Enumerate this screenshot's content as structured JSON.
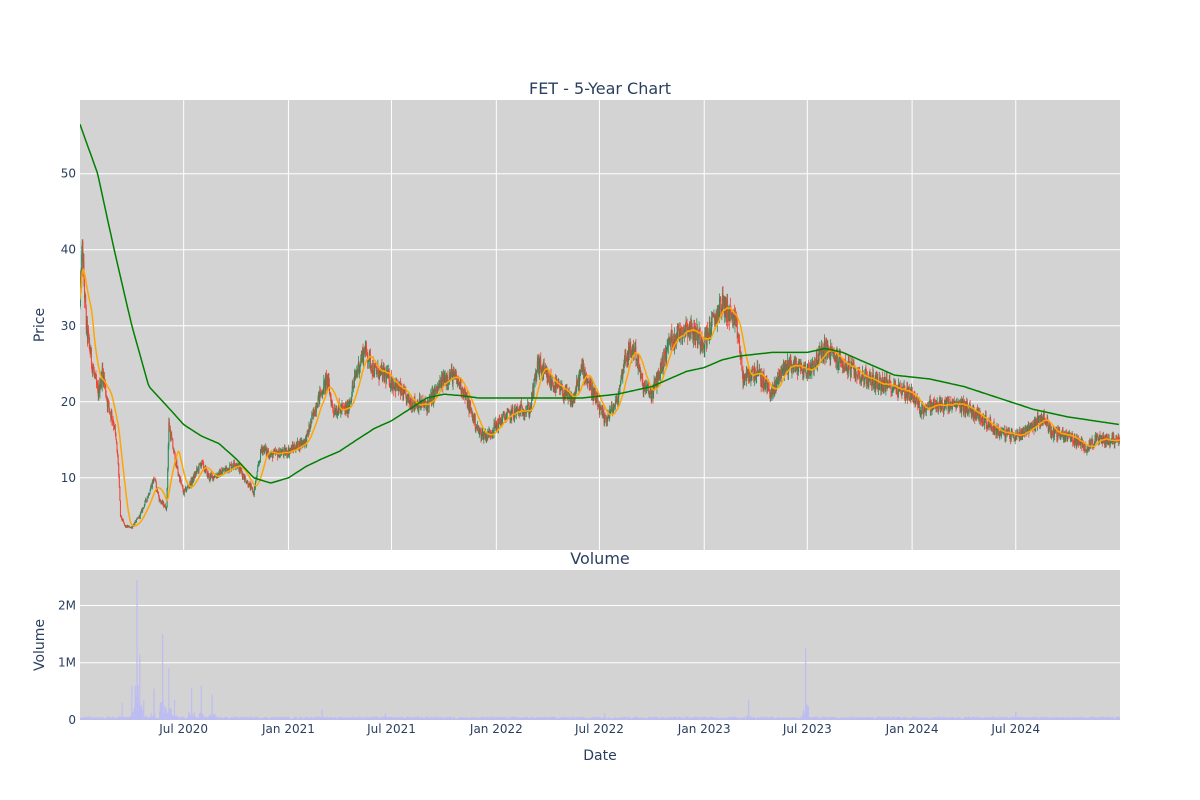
{
  "chart_data": [
    {
      "type": "candlestick",
      "title": "FET - 5-Year Chart",
      "ylabel": "Price",
      "ylim": [
        0.5,
        59.7
      ],
      "yticks": [
        "10",
        "20",
        "30",
        "40",
        "50"
      ],
      "ytick_values": [
        10,
        20,
        30,
        40,
        50
      ],
      "xlim": [
        "2020-01-01",
        "2024-12-31"
      ],
      "grid": true,
      "colors": {
        "background": "#d3d3d3",
        "grid": "#ffffff",
        "up": "#2e8b57",
        "down": "#ef4638",
        "ma_short": "#ffa500",
        "ma_long": "#008000"
      },
      "close_keypoints": [
        [
          "2020-01-01",
          33
        ],
        [
          "2020-01-05",
          40
        ],
        [
          "2020-01-12",
          30
        ],
        [
          "2020-01-20",
          26
        ],
        [
          "2020-02-01",
          21
        ],
        [
          "2020-02-10",
          24
        ],
        [
          "2020-02-18",
          20
        ],
        [
          "2020-03-01",
          17
        ],
        [
          "2020-03-08",
          12
        ],
        [
          "2020-03-12",
          5
        ],
        [
          "2020-03-20",
          3.6
        ],
        [
          "2020-04-01",
          3.5
        ],
        [
          "2020-04-15",
          5
        ],
        [
          "2020-05-01",
          8
        ],
        [
          "2020-05-10",
          10
        ],
        [
          "2020-05-20",
          7
        ],
        [
          "2020-06-01",
          6
        ],
        [
          "2020-06-05",
          17
        ],
        [
          "2020-06-12",
          14
        ],
        [
          "2020-06-20",
          11
        ],
        [
          "2020-07-01",
          8
        ],
        [
          "2020-07-15",
          9.5
        ],
        [
          "2020-08-01",
          12
        ],
        [
          "2020-08-15",
          10
        ],
        [
          "2020-09-01",
          10.5
        ],
        [
          "2020-10-01",
          12
        ],
        [
          "2020-10-20",
          9.5
        ],
        [
          "2020-11-01",
          8
        ],
        [
          "2020-11-15",
          14
        ],
        [
          "2020-12-01",
          13
        ],
        [
          "2021-01-01",
          13.5
        ],
        [
          "2021-02-01",
          15
        ],
        [
          "2021-02-20",
          20
        ],
        [
          "2021-03-10",
          23
        ],
        [
          "2021-03-20",
          19
        ],
        [
          "2021-04-15",
          19
        ],
        [
          "2021-05-01",
          24
        ],
        [
          "2021-05-15",
          27
        ],
        [
          "2021-06-01",
          24
        ],
        [
          "2021-06-20",
          23.5
        ],
        [
          "2021-07-10",
          22
        ],
        [
          "2021-08-01",
          20
        ],
        [
          "2021-09-01",
          19.5
        ],
        [
          "2021-10-01",
          23
        ],
        [
          "2021-10-15",
          23.5
        ],
        [
          "2021-11-01",
          22
        ],
        [
          "2021-12-01",
          16
        ],
        [
          "2021-12-15",
          15.5
        ],
        [
          "2022-01-15",
          18
        ],
        [
          "2022-02-15",
          19
        ],
        [
          "2022-03-01",
          19
        ],
        [
          "2022-03-15",
          25
        ],
        [
          "2022-04-01",
          23
        ],
        [
          "2022-05-01",
          21
        ],
        [
          "2022-05-15",
          20
        ],
        [
          "2022-06-01",
          24.5
        ],
        [
          "2022-06-15",
          22
        ],
        [
          "2022-07-01",
          19
        ],
        [
          "2022-07-10",
          17.5
        ],
        [
          "2022-08-01",
          20
        ],
        [
          "2022-08-15",
          26
        ],
        [
          "2022-09-01",
          27
        ],
        [
          "2022-09-15",
          22
        ],
        [
          "2022-10-01",
          21
        ],
        [
          "2022-10-15",
          24
        ],
        [
          "2022-11-01",
          28
        ],
        [
          "2022-12-01",
          30
        ],
        [
          "2023-01-01",
          28
        ],
        [
          "2023-01-20",
          31
        ],
        [
          "2023-02-01",
          33
        ],
        [
          "2023-02-20",
          31
        ],
        [
          "2023-03-01",
          29
        ],
        [
          "2023-03-10",
          23
        ],
        [
          "2023-04-01",
          24
        ],
        [
          "2023-05-01",
          21
        ],
        [
          "2023-05-15",
          24
        ],
        [
          "2023-06-01",
          25
        ],
        [
          "2023-07-01",
          24
        ],
        [
          "2023-08-01",
          27
        ],
        [
          "2023-09-01",
          25
        ],
        [
          "2023-10-01",
          23.5
        ],
        [
          "2023-11-01",
          22.5
        ],
        [
          "2023-12-01",
          22
        ],
        [
          "2024-01-01",
          21
        ],
        [
          "2024-01-15",
          19
        ],
        [
          "2024-02-01",
          19.5
        ],
        [
          "2024-03-01",
          19.5
        ],
        [
          "2024-04-01",
          19.5
        ],
        [
          "2024-05-01",
          18
        ],
        [
          "2024-06-01",
          16
        ],
        [
          "2024-07-01",
          15.5
        ],
        [
          "2024-08-01",
          17
        ],
        [
          "2024-08-20",
          18
        ],
        [
          "2024-09-01",
          16
        ],
        [
          "2024-10-01",
          15.5
        ],
        [
          "2024-11-01",
          14
        ],
        [
          "2024-11-20",
          15
        ],
        [
          "2024-12-31",
          15
        ]
      ],
      "ma_short_period_days": 20,
      "ma_long_keypoints": [
        [
          "2020-01-01",
          56.5
        ],
        [
          "2020-02-01",
          50
        ],
        [
          "2020-03-01",
          40
        ],
        [
          "2020-04-01",
          30
        ],
        [
          "2020-05-01",
          22
        ],
        [
          "2020-06-01",
          19.5
        ],
        [
          "2020-07-01",
          17
        ],
        [
          "2020-08-01",
          15.5
        ],
        [
          "2020-09-01",
          14.5
        ],
        [
          "2020-10-01",
          12.5
        ],
        [
          "2020-11-01",
          10
        ],
        [
          "2020-12-01",
          9.3
        ],
        [
          "2021-01-01",
          10
        ],
        [
          "2021-02-01",
          11.5
        ],
        [
          "2021-03-01",
          12.5
        ],
        [
          "2021-04-01",
          13.5
        ],
        [
          "2021-05-01",
          15
        ],
        [
          "2021-06-01",
          16.5
        ],
        [
          "2021-07-01",
          17.5
        ],
        [
          "2021-08-01",
          19
        ],
        [
          "2021-09-01",
          20.5
        ],
        [
          "2021-10-01",
          21
        ],
        [
          "2021-11-01",
          20.8
        ],
        [
          "2021-12-01",
          20.5
        ],
        [
          "2022-02-01",
          20.5
        ],
        [
          "2022-04-01",
          20.5
        ],
        [
          "2022-06-01",
          20.5
        ],
        [
          "2022-08-01",
          21
        ],
        [
          "2022-10-01",
          22
        ],
        [
          "2022-12-01",
          24
        ],
        [
          "2023-01-01",
          24.5
        ],
        [
          "2023-02-01",
          25.5
        ],
        [
          "2023-03-01",
          26
        ],
        [
          "2023-05-01",
          26.5
        ],
        [
          "2023-06-01",
          26.5
        ],
        [
          "2023-07-01",
          26.5
        ],
        [
          "2023-08-01",
          27
        ],
        [
          "2023-09-01",
          26.5
        ],
        [
          "2023-10-01",
          25.5
        ],
        [
          "2023-11-01",
          24.5
        ],
        [
          "2023-12-01",
          23.5
        ],
        [
          "2024-02-01",
          23
        ],
        [
          "2024-04-01",
          22
        ],
        [
          "2024-06-01",
          20.5
        ],
        [
          "2024-08-01",
          19
        ],
        [
          "2024-10-01",
          18
        ],
        [
          "2024-12-31",
          17
        ]
      ]
    },
    {
      "type": "bar",
      "title": "Volume",
      "xlabel": "Date",
      "ylabel": "Volume",
      "ylim": [
        0,
        2620000
      ],
      "yticks": [
        "0",
        "1M",
        "2M"
      ],
      "ytick_values": [
        0,
        1000000,
        2000000
      ],
      "xticks": [
        "Jul 2020",
        "Jan 2021",
        "Jul 2021",
        "Jan 2022",
        "Jul 2022",
        "Jan 2023",
        "Jul 2023",
        "Jan 2024",
        "Jul 2024"
      ],
      "xtick_dates": [
        "2020-07-01",
        "2021-01-01",
        "2021-07-01",
        "2022-01-01",
        "2022-07-01",
        "2023-01-01",
        "2023-07-01",
        "2024-01-01",
        "2024-07-01"
      ],
      "colors": {
        "bars": "#bdbdf2"
      },
      "volume_spikes": [
        [
          "2020-03-15",
          300000
        ],
        [
          "2020-04-01",
          600000
        ],
        [
          "2020-04-10",
          2450000
        ],
        [
          "2020-04-15",
          1150000
        ],
        [
          "2020-04-22",
          350000
        ],
        [
          "2020-05-10",
          550000
        ],
        [
          "2020-05-25",
          1500000
        ],
        [
          "2020-06-05",
          900000
        ],
        [
          "2020-06-15",
          350000
        ],
        [
          "2020-07-15",
          550000
        ],
        [
          "2020-08-01",
          600000
        ],
        [
          "2020-08-20",
          450000
        ],
        [
          "2021-03-01",
          180000
        ],
        [
          "2021-06-20",
          120000
        ],
        [
          "2022-07-10",
          120000
        ],
        [
          "2023-03-20",
          350000
        ],
        [
          "2023-06-28",
          1250000
        ],
        [
          "2024-07-01",
          150000
        ]
      ],
      "volume_baseline": 40000
    }
  ]
}
